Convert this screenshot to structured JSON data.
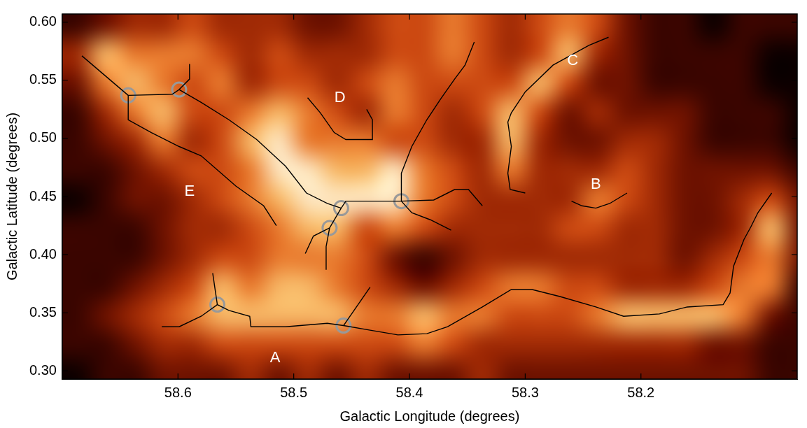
{
  "chart_data": {
    "type": "heatmap",
    "x_label": "Galactic Longitude (degrees)",
    "y_label": "Galactic Latitude (degrees)",
    "xlim": [
      58.7,
      58.065
    ],
    "ylim": [
      0.293,
      0.607
    ],
    "xticks": [
      58.6,
      58.5,
      58.4,
      58.3,
      58.2
    ],
    "yticks": [
      {
        "value": 0.3,
        "label": "0.30"
      },
      0.35,
      {
        "value": 0.4,
        "label": "0.40"
      },
      0.45,
      {
        "value": 0.5,
        "label": "0.50"
      },
      0.55,
      {
        "value": 0.6,
        "label": "0.60"
      }
    ],
    "grid": false,
    "heatmap": {
      "lon_edges": [
        58.7,
        58.675,
        58.65,
        58.625,
        58.6,
        58.575,
        58.55,
        58.525,
        58.5,
        58.475,
        58.45,
        58.425,
        58.4,
        58.375,
        58.35,
        58.325,
        58.3,
        58.275,
        58.25,
        58.225,
        58.2,
        58.175,
        58.15,
        58.125,
        58.1,
        58.075,
        58.05
      ],
      "lat_edges": [
        0.61,
        0.585,
        0.56,
        0.535,
        0.51,
        0.485,
        0.46,
        0.435,
        0.41,
        0.385,
        0.36,
        0.335,
        0.31,
        0.285
      ],
      "cells": [
        [
          1,
          2,
          3,
          3,
          4,
          3,
          3,
          3,
          2,
          2,
          3,
          4,
          4,
          5,
          4,
          3,
          4,
          5,
          4,
          2,
          1,
          1,
          0,
          1,
          1,
          1
        ],
        [
          3,
          6,
          5,
          5,
          5,
          4,
          3,
          4,
          3,
          3,
          3,
          4,
          4,
          5,
          4,
          3,
          4,
          6,
          3,
          2,
          1,
          1,
          1,
          1,
          0,
          0
        ],
        [
          2,
          5,
          6,
          5,
          4,
          5,
          3,
          4,
          4,
          3,
          4,
          5,
          4,
          4,
          4,
          4,
          6,
          4,
          2,
          2,
          1,
          1,
          1,
          1,
          0,
          0
        ],
        [
          1,
          3,
          5,
          6,
          4,
          4,
          5,
          6,
          5,
          4,
          3,
          5,
          4,
          3,
          4,
          6,
          4,
          2,
          3,
          2,
          2,
          2,
          1,
          1,
          1,
          0
        ],
        [
          1,
          2,
          3,
          5,
          3,
          4,
          6,
          7,
          5,
          5,
          5,
          4,
          4,
          3,
          3,
          6,
          3,
          2,
          2,
          3,
          3,
          2,
          1,
          1,
          1,
          0
        ],
        [
          1,
          1,
          2,
          3,
          4,
          4,
          5,
          7,
          7,
          6,
          6,
          7,
          5,
          4,
          3,
          5,
          3,
          3,
          3,
          4,
          3,
          2,
          2,
          2,
          2,
          1
        ],
        [
          0,
          1,
          2,
          2,
          3,
          4,
          5,
          6,
          7,
          7,
          7,
          7,
          5,
          4,
          3,
          3,
          3,
          3,
          5,
          4,
          3,
          2,
          2,
          3,
          4,
          2
        ],
        [
          1,
          1,
          1,
          2,
          3,
          3,
          4,
          5,
          6,
          6,
          4,
          5,
          4,
          3,
          3,
          3,
          3,
          4,
          4,
          3,
          3,
          2,
          2,
          3,
          6,
          2
        ],
        [
          1,
          1,
          1,
          2,
          3,
          4,
          4,
          5,
          5,
          5,
          4,
          2,
          1,
          2,
          3,
          3,
          3,
          3,
          3,
          3,
          3,
          2,
          3,
          4,
          5,
          2
        ],
        [
          1,
          1,
          2,
          3,
          4,
          6,
          5,
          6,
          6,
          5,
          4,
          3,
          2,
          3,
          4,
          5,
          5,
          4,
          4,
          3,
          3,
          3,
          4,
          5,
          5,
          1
        ],
        [
          1,
          2,
          3,
          4,
          5,
          6,
          6,
          6,
          6,
          6,
          5,
          5,
          6,
          5,
          5,
          4,
          4,
          4,
          5,
          6,
          6,
          6,
          6,
          5,
          2,
          1
        ],
        [
          1,
          1,
          2,
          3,
          3,
          4,
          4,
          4,
          4,
          4,
          4,
          4,
          5,
          4,
          3,
          3,
          3,
          3,
          3,
          3,
          3,
          3,
          2,
          2,
          1,
          1
        ],
        [
          0,
          1,
          1,
          2,
          2,
          2,
          3,
          2,
          3,
          2,
          3,
          2,
          2,
          2,
          3,
          2,
          2,
          2,
          2,
          2,
          2,
          2,
          2,
          2,
          1,
          1
        ]
      ]
    },
    "filaments": {
      "color": "#000000",
      "line_style": "solid",
      "paths": [
        [
          [
            58.683,
            0.571
          ],
          [
            58.643,
            0.537
          ]
        ],
        [
          [
            58.643,
            0.537
          ],
          [
            58.605,
            0.538
          ],
          [
            58.599,
            0.542
          ]
        ],
        [
          [
            58.599,
            0.542
          ],
          [
            58.59,
            0.551
          ],
          [
            58.59,
            0.564
          ]
        ],
        [
          [
            58.643,
            0.537
          ],
          [
            58.643,
            0.516
          ],
          [
            58.623,
            0.505
          ],
          [
            58.599,
            0.493
          ],
          [
            58.58,
            0.485
          ],
          [
            58.55,
            0.459
          ],
          [
            58.526,
            0.442
          ],
          [
            58.515,
            0.425
          ]
        ],
        [
          [
            58.599,
            0.542
          ],
          [
            58.58,
            0.531
          ],
          [
            58.556,
            0.516
          ],
          [
            58.532,
            0.499
          ],
          [
            58.507,
            0.476
          ],
          [
            58.489,
            0.453
          ],
          [
            58.471,
            0.444
          ],
          [
            58.459,
            0.44
          ]
        ],
        [
          [
            58.459,
            0.44
          ],
          [
            58.455,
            0.446
          ],
          [
            58.407,
            0.446
          ]
        ],
        [
          [
            58.459,
            0.44
          ],
          [
            58.469,
            0.423
          ]
        ],
        [
          [
            58.469,
            0.423
          ],
          [
            58.483,
            0.416
          ],
          [
            58.49,
            0.401
          ]
        ],
        [
          [
            58.469,
            0.423
          ],
          [
            58.472,
            0.407
          ],
          [
            58.472,
            0.387
          ]
        ],
        [
          [
            58.407,
            0.446
          ],
          [
            58.407,
            0.47
          ],
          [
            58.398,
            0.493
          ],
          [
            58.385,
            0.516
          ],
          [
            58.373,
            0.534
          ],
          [
            58.361,
            0.551
          ],
          [
            58.352,
            0.563
          ],
          [
            58.344,
            0.583
          ]
        ],
        [
          [
            58.407,
            0.446
          ],
          [
            58.379,
            0.447
          ],
          [
            58.361,
            0.456
          ],
          [
            58.349,
            0.456
          ],
          [
            58.337,
            0.442
          ]
        ],
        [
          [
            58.407,
            0.446
          ],
          [
            58.398,
            0.436
          ],
          [
            58.382,
            0.43
          ],
          [
            58.364,
            0.421
          ]
        ],
        [
          [
            58.488,
            0.535
          ],
          [
            58.477,
            0.522
          ],
          [
            58.465,
            0.505
          ],
          [
            58.455,
            0.499
          ],
          [
            58.432,
            0.499
          ],
          [
            58.432,
            0.516
          ],
          [
            58.437,
            0.525
          ]
        ],
        [
          [
            58.228,
            0.587
          ],
          [
            58.245,
            0.58
          ],
          [
            58.276,
            0.563
          ],
          [
            58.3,
            0.54
          ],
          [
            58.312,
            0.522
          ],
          [
            58.315,
            0.514
          ],
          [
            58.312,
            0.493
          ],
          [
            58.315,
            0.47
          ],
          [
            58.313,
            0.456
          ],
          [
            58.3,
            0.453
          ]
        ],
        [
          [
            58.26,
            0.446
          ],
          [
            58.251,
            0.442
          ],
          [
            58.239,
            0.44
          ],
          [
            58.227,
            0.444
          ],
          [
            58.212,
            0.453
          ]
        ],
        [
          [
            58.614,
            0.338
          ],
          [
            58.599,
            0.338
          ],
          [
            58.58,
            0.347
          ],
          [
            58.566,
            0.357
          ],
          [
            58.556,
            0.352
          ],
          [
            58.538,
            0.347
          ],
          [
            58.537,
            0.338
          ],
          [
            58.507,
            0.338
          ],
          [
            58.471,
            0.341
          ],
          [
            58.457,
            0.339
          ],
          [
            58.434,
            0.335
          ],
          [
            58.41,
            0.331
          ],
          [
            58.385,
            0.332
          ],
          [
            58.367,
            0.338
          ],
          [
            58.337,
            0.355
          ],
          [
            58.312,
            0.37
          ],
          [
            58.294,
            0.37
          ],
          [
            58.27,
            0.364
          ],
          [
            58.239,
            0.355
          ],
          [
            58.215,
            0.347
          ],
          [
            58.184,
            0.349
          ],
          [
            58.16,
            0.355
          ],
          [
            58.129,
            0.357
          ],
          [
            58.123,
            0.367
          ],
          [
            58.12,
            0.39
          ],
          [
            58.111,
            0.413
          ],
          [
            58.105,
            0.424
          ],
          [
            58.099,
            0.436
          ],
          [
            58.087,
            0.453
          ]
        ],
        [
          [
            58.566,
            0.357
          ],
          [
            58.57,
            0.384
          ]
        ],
        [
          [
            58.457,
            0.339
          ],
          [
            58.434,
            0.372
          ]
        ]
      ]
    },
    "junctions": {
      "color": "#999999",
      "marker": "circle",
      "x": [
        58.643,
        58.599,
        58.459,
        58.469,
        58.407,
        58.566,
        58.457
      ],
      "y": [
        0.537,
        0.542,
        0.44,
        0.423,
        0.446,
        0.357,
        0.339
      ]
    },
    "annotations": [
      {
        "text": "A",
        "x": 58.516,
        "y": 0.311
      },
      {
        "text": "B",
        "x": 58.239,
        "y": 0.46
      },
      {
        "text": "C",
        "x": 58.259,
        "y": 0.567
      },
      {
        "text": "D",
        "x": 58.46,
        "y": 0.535
      },
      {
        "text": "E",
        "x": 58.59,
        "y": 0.454
      }
    ]
  }
}
